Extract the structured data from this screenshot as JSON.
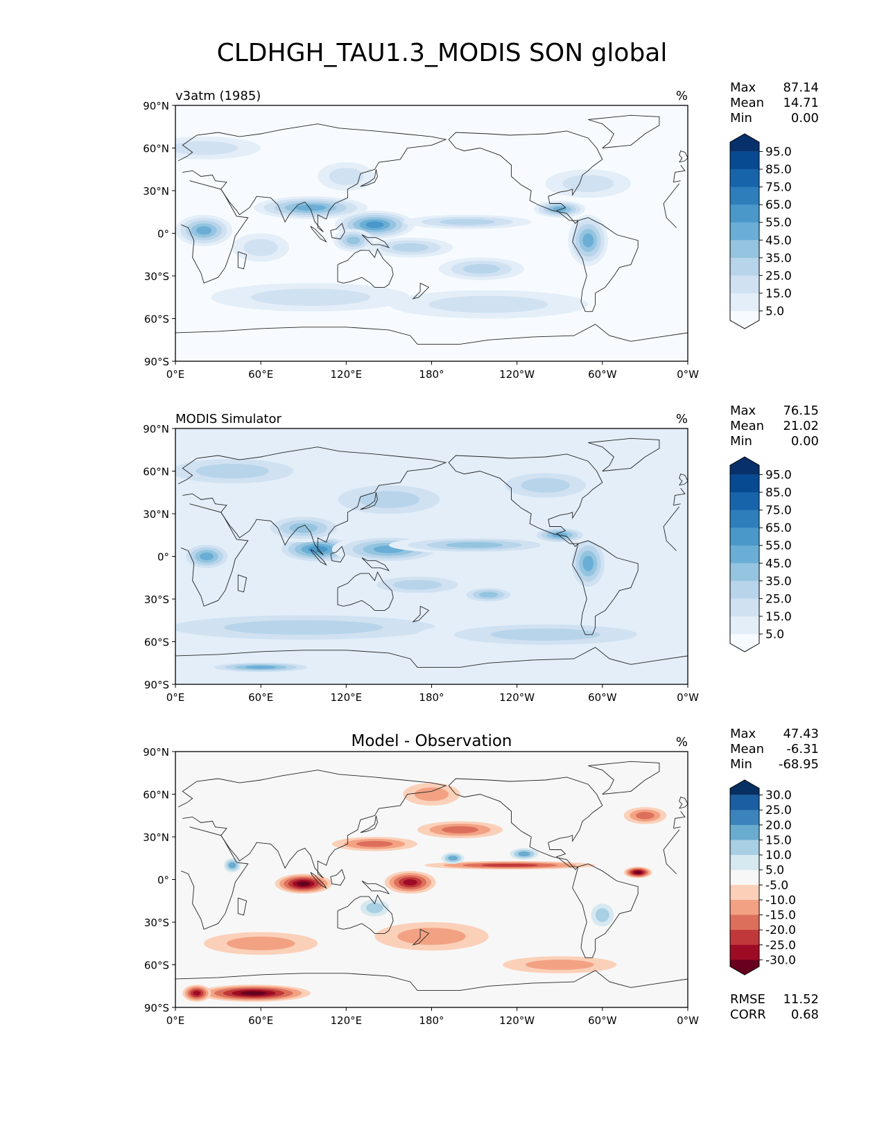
{
  "title": "CLDHGH_TAU1.3_MODIS SON global",
  "map_axes": {
    "lat_ticks": [
      "90°N",
      "60°N",
      "30°N",
      "0°",
      "30°S",
      "60°S",
      "90°S"
    ],
    "lon_ticks": [
      "0°E",
      "60°E",
      "120°E",
      "180°",
      "120°W",
      "60°W",
      "0°W"
    ]
  },
  "chart_data": [
    {
      "type": "heatmap",
      "panel": "test",
      "left_title": "v3atm (1985)",
      "center_title": "",
      "units": "%",
      "stats": {
        "Max_label": "Max",
        "Max": "87.14",
        "Mean_label": "Mean",
        "Mean": "14.71",
        "Min_label": "Min",
        "Min": "0.00"
      },
      "colormap": "Blues",
      "colorbar_ticks": [
        "95.0",
        "85.0",
        "75.0",
        "65.0",
        "55.0",
        "45.0",
        "35.0",
        "25.0",
        "15.0",
        "5.0"
      ],
      "colors": [
        "#f7fbff",
        "#e3eef8",
        "#d0e1f2",
        "#b7d4ea",
        "#94c4df",
        "#6aaed6",
        "#4a98c9",
        "#2e7ebc",
        "#1764ab",
        "#084a91",
        "#08306b"
      ],
      "lon_range": [
        0,
        360
      ],
      "lat_range": [
        -90,
        90
      ]
    },
    {
      "type": "heatmap",
      "panel": "reference",
      "left_title": "MODIS Simulator",
      "center_title": "",
      "units": "%",
      "stats": {
        "Max_label": "Max",
        "Max": "76.15",
        "Mean_label": "Mean",
        "Mean": "21.02",
        "Min_label": "Min",
        "Min": "0.00"
      },
      "colormap": "Blues",
      "colorbar_ticks": [
        "95.0",
        "85.0",
        "75.0",
        "65.0",
        "55.0",
        "45.0",
        "35.0",
        "25.0",
        "15.0",
        "5.0"
      ],
      "colors": [
        "#f7fbff",
        "#e3eef8",
        "#d0e1f2",
        "#b7d4ea",
        "#94c4df",
        "#6aaed6",
        "#4a98c9",
        "#2e7ebc",
        "#1764ab",
        "#084a91",
        "#08306b"
      ],
      "lon_range": [
        0,
        360
      ],
      "lat_range": [
        -90,
        90
      ]
    },
    {
      "type": "heatmap",
      "panel": "difference",
      "left_title": "",
      "center_title": "Model - Observation",
      "units": "%",
      "stats": {
        "Max_label": "Max",
        "Max": "47.43",
        "Mean_label": "Mean",
        "Mean": "-6.31",
        "Min_label": "Min",
        "Min": "-68.95"
      },
      "extra_stats": {
        "RMSE_label": "RMSE",
        "RMSE": "11.52",
        "CORR_label": "CORR",
        "CORR": "0.68"
      },
      "colormap": "RdBu_r",
      "colorbar_ticks": [
        "30.0",
        "25.0",
        "20.0",
        "15.0",
        "10.0",
        "5.0",
        "-5.0",
        "-10.0",
        "-15.0",
        "-20.0",
        "-25.0",
        "-30.0"
      ],
      "colors": [
        "#67001f",
        "#9e0b25",
        "#c0383a",
        "#dc6f5b",
        "#f2a283",
        "#fbd0b9",
        "#f7f7f7",
        "#d6e8f0",
        "#a8cfe4",
        "#6aacd0",
        "#3a84bb",
        "#1b5ea1",
        "#053061"
      ],
      "lon_range": [
        0,
        360
      ],
      "lat_range": [
        -90,
        90
      ]
    }
  ]
}
